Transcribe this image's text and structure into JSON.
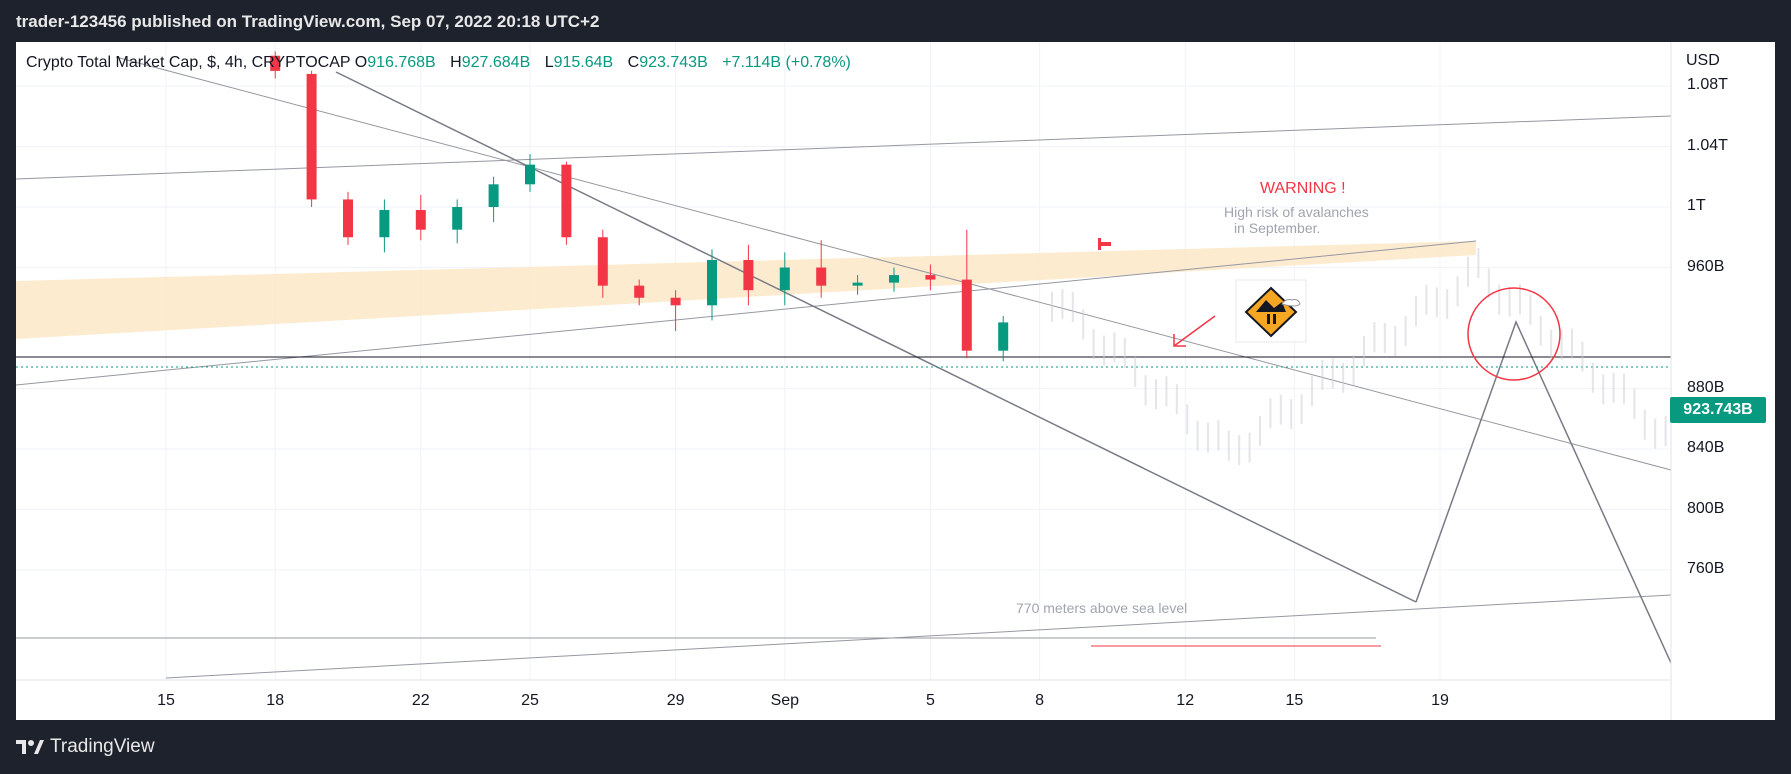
{
  "header": {
    "published_line": "trader-123456 published on TradingView.com, Sep 07, 2022 20:18 UTC+2"
  },
  "footer": {
    "brand": "TradingView"
  },
  "legend": {
    "symbol": "Crypto Total Market Cap, $, 4h, CRYPTOCAP",
    "open_label": "O",
    "open": "916.768B",
    "high_label": "H",
    "high": "927.684B",
    "low_label": "L",
    "low": "915.64B",
    "close_label": "C",
    "close": "923.743B",
    "change": "+7.114B (+0.78%)"
  },
  "annotations": {
    "warning_title": "WARNING !",
    "warning_line1": "High risk of avalanches",
    "warning_line2": "in September.",
    "sea_level": "770  meters above sea level"
  },
  "colors": {
    "up": "#089981",
    "down": "#f23645",
    "zone": "#fde8c8",
    "trendline": "#9598a1",
    "price_line": "#131722",
    "accent_red": "#f23645",
    "price_tag": "#089981"
  },
  "icons": [
    "tradingview-logo-icon",
    "avalanche-warning-sign-icon",
    "flag-marker-icon",
    "red-arrow-icon",
    "red-circle-marker-icon"
  ],
  "chart_data": {
    "type": "candlestick",
    "symbol": "CRYPTOCAP:TOTAL",
    "interval": "4h",
    "currency_label": "USD",
    "y_ticks": [
      "1.08T",
      "1.04T",
      "1T",
      "960B",
      "880B",
      "840B",
      "800B",
      "760B"
    ],
    "y_tick_values": [
      1080,
      1040,
      1000,
      960,
      880,
      840,
      800,
      760
    ],
    "x_ticks": [
      "15",
      "18",
      "22",
      "25",
      "29",
      "Sep",
      "5",
      "8",
      "12",
      "15",
      "19"
    ],
    "x_tick_dates": [
      "2022-08-15",
      "2022-08-18",
      "2022-08-22",
      "2022-08-25",
      "2022-08-29",
      "2022-09-01",
      "2022-09-05",
      "2022-09-08",
      "2022-09-12",
      "2022-09-15",
      "2022-09-19"
    ],
    "last_price_label": "923.743B",
    "last_price": 923.743,
    "ylim_billions": [
      746,
      1102
    ],
    "xlim": [
      "2022-08-11",
      "2022-09-20"
    ],
    "grid": true,
    "candles_daily_billions": [
      {
        "date": "2022-08-18",
        "o": 1100,
        "h": 1103,
        "l": 1085,
        "c": 1090
      },
      {
        "date": "2022-08-19",
        "o": 1088,
        "h": 1090,
        "l": 1000,
        "c": 1005
      },
      {
        "date": "2022-08-20",
        "o": 1005,
        "h": 1010,
        "l": 975,
        "c": 980
      },
      {
        "date": "2022-08-21",
        "o": 980,
        "h": 1005,
        "l": 970,
        "c": 998
      },
      {
        "date": "2022-08-22",
        "o": 998,
        "h": 1008,
        "l": 978,
        "c": 985
      },
      {
        "date": "2022-08-23",
        "o": 985,
        "h": 1005,
        "l": 976,
        "c": 1000
      },
      {
        "date": "2022-08-24",
        "o": 1000,
        "h": 1020,
        "l": 990,
        "c": 1015
      },
      {
        "date": "2022-08-25",
        "o": 1015,
        "h": 1035,
        "l": 1010,
        "c": 1028
      },
      {
        "date": "2022-08-26",
        "o": 1028,
        "h": 1030,
        "l": 975,
        "c": 980
      },
      {
        "date": "2022-08-27",
        "o": 980,
        "h": 985,
        "l": 940,
        "c": 948
      },
      {
        "date": "2022-08-28",
        "o": 948,
        "h": 952,
        "l": 935,
        "c": 940
      },
      {
        "date": "2022-08-29",
        "o": 940,
        "h": 945,
        "l": 918,
        "c": 935
      },
      {
        "date": "2022-08-30",
        "o": 935,
        "h": 972,
        "l": 925,
        "c": 965
      },
      {
        "date": "2022-08-31",
        "o": 965,
        "h": 975,
        "l": 935,
        "c": 945
      },
      {
        "date": "2022-09-01",
        "o": 945,
        "h": 970,
        "l": 935,
        "c": 960
      },
      {
        "date": "2022-09-02",
        "o": 960,
        "h": 978,
        "l": 940,
        "c": 948
      },
      {
        "date": "2022-09-03",
        "o": 948,
        "h": 955,
        "l": 942,
        "c": 950
      },
      {
        "date": "2022-09-04",
        "o": 950,
        "h": 960,
        "l": 944,
        "c": 955
      },
      {
        "date": "2022-09-05",
        "o": 955,
        "h": 962,
        "l": 945,
        "c": 952
      },
      {
        "date": "2022-09-06",
        "o": 952,
        "h": 985,
        "l": 900,
        "c": 905
      },
      {
        "date": "2022-09-07",
        "o": 905,
        "h": 928,
        "l": 898,
        "c": 923.7
      }
    ]
  }
}
